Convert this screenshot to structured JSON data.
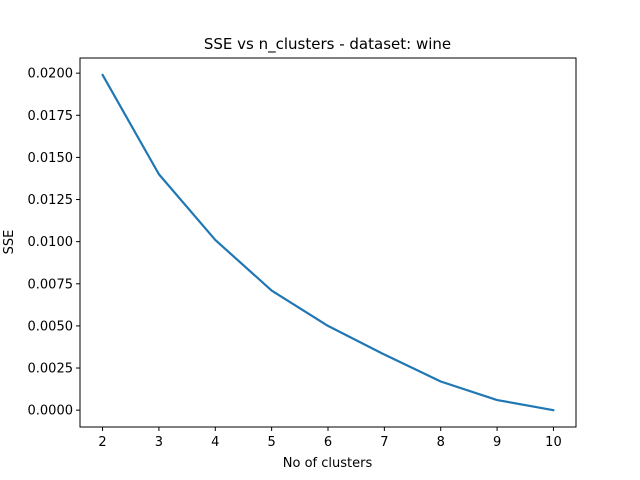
{
  "chart_data": {
    "type": "line",
    "title": "SSE vs n_clusters - dataset: wine",
    "xlabel": "No of clusters",
    "ylabel": "SSE",
    "x": [
      2,
      3,
      4,
      5,
      6,
      7,
      8,
      9,
      10
    ],
    "series": [
      {
        "values": [
          0.0199,
          0.014,
          0.0101,
          0.0071,
          0.005,
          0.0033,
          0.0017,
          0.0006,
          0.0
        ]
      }
    ],
    "x_ticks": [
      "2",
      "3",
      "4",
      "5",
      "6",
      "7",
      "8",
      "9",
      "10"
    ],
    "y_ticks": [
      "0.0000",
      "0.0025",
      "0.0050",
      "0.0075",
      "0.0100",
      "0.0125",
      "0.0150",
      "0.0175",
      "0.0200"
    ],
    "xlim": [
      1.6,
      10.4
    ],
    "ylim": [
      -0.001,
      0.0209
    ],
    "grid": false,
    "colors": {
      "line": "#1f77b4",
      "axes": "#000000"
    }
  }
}
